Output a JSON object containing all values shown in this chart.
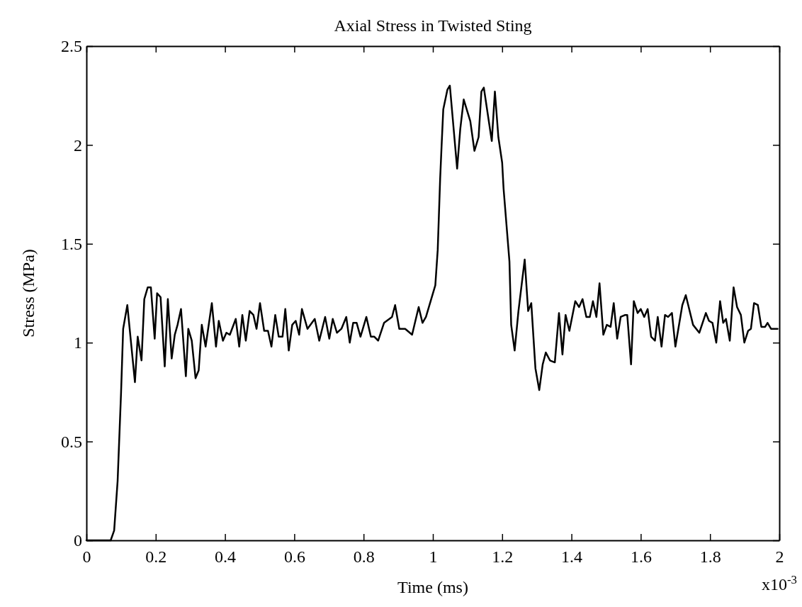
{
  "chart_data": {
    "type": "line",
    "title": "Axial Stress in Twisted Sting",
    "xlabel": "Time (ms)",
    "ylabel": "Stress (MPa)",
    "annotations": [
      "x10$^{-3}$"
    ],
    "xlim": [
      0,
      2
    ],
    "xticks": [
      0,
      0.2,
      0.4,
      0.6,
      0.8,
      1,
      1.2,
      1.4,
      1.6,
      1.8,
      2
    ],
    "ylim": [
      0,
      2.5
    ],
    "yticks": [
      0,
      0.5,
      1,
      1.5,
      2,
      2.5
    ],
    "grid": false,
    "marker": "none",
    "line_style": "solid",
    "series": [
      {
        "color": "#000000",
        "x": [
          0,
          0.07,
          0.08,
          0.09,
          0.1,
          0.106,
          0.118,
          0.14,
          0.148,
          0.159,
          0.167,
          0.177,
          0.186,
          0.197,
          0.204,
          0.214,
          0.226,
          0.235,
          0.246,
          0.255,
          0.263,
          0.273,
          0.287,
          0.294,
          0.304,
          0.315,
          0.324,
          0.333,
          0.344,
          0.362,
          0.374,
          0.382,
          0.394,
          0.404,
          0.414,
          0.431,
          0.441,
          0.45,
          0.46,
          0.471,
          0.482,
          0.491,
          0.501,
          0.513,
          0.524,
          0.534,
          0.545,
          0.555,
          0.566,
          0.574,
          0.584,
          0.594,
          0.604,
          0.614,
          0.622,
          0.638,
          0.659,
          0.672,
          0.689,
          0.701,
          0.711,
          0.723,
          0.736,
          0.75,
          0.76,
          0.77,
          0.78,
          0.791,
          0.808,
          0.821,
          0.831,
          0.842,
          0.859,
          0.882,
          0.891,
          0.903,
          0.92,
          0.94,
          0.959,
          0.97,
          0.98,
          1.007,
          1.014,
          1.021,
          1.025,
          1.03,
          1.042,
          1.049,
          1.07,
          1.079,
          1.089,
          1.108,
          1.12,
          1.132,
          1.14,
          1.147,
          1.17,
          1.179,
          1.189,
          1.2,
          1.204,
          1.221,
          1.226,
          1.236,
          1.247,
          1.265,
          1.275,
          1.284,
          1.296,
          1.307,
          1.317,
          1.326,
          1.338,
          1.352,
          1.364,
          1.374,
          1.383,
          1.394,
          1.411,
          1.422,
          1.432,
          1.443,
          1.453,
          1.462,
          1.472,
          1.481,
          1.492,
          1.502,
          1.513,
          1.522,
          1.532,
          1.542,
          1.555,
          1.561,
          1.572,
          1.58,
          1.591,
          1.6,
          1.61,
          1.62,
          1.63,
          1.641,
          1.649,
          1.66,
          1.67,
          1.679,
          1.69,
          1.7,
          1.72,
          1.73,
          1.751,
          1.769,
          1.788,
          1.797,
          1.807,
          1.818,
          1.829,
          1.838,
          1.846,
          1.857,
          1.868,
          1.878,
          1.889,
          1.899,
          1.91,
          1.918,
          1.927,
          1.938,
          1.948,
          1.959,
          1.966,
          1.976,
          1.995
        ],
        "values": [
          0,
          0,
          0.05,
          0.3,
          0.75,
          1.07,
          1.19,
          0.8,
          1.03,
          0.91,
          1.22,
          1.28,
          1.28,
          1.02,
          1.25,
          1.23,
          0.88,
          1.22,
          0.92,
          1.04,
          1.09,
          1.17,
          0.83,
          1.07,
          1.01,
          0.82,
          0.86,
          1.09,
          0.98,
          1.2,
          0.98,
          1.11,
          1.01,
          1.05,
          1.04,
          1.12,
          0.98,
          1.14,
          1.01,
          1.16,
          1.14,
          1.07,
          1.2,
          1.06,
          1.06,
          0.98,
          1.14,
          1.03,
          1.03,
          1.17,
          0.96,
          1.09,
          1.11,
          1.04,
          1.17,
          1.07,
          1.12,
          1.01,
          1.13,
          1.02,
          1.12,
          1.05,
          1.07,
          1.13,
          1,
          1.1,
          1.1,
          1.03,
          1.13,
          1.03,
          1.03,
          1.01,
          1.1,
          1.13,
          1.19,
          1.07,
          1.07,
          1.04,
          1.18,
          1.1,
          1.13,
          1.29,
          1.47,
          1.83,
          1.99,
          2.18,
          2.28,
          2.3,
          1.88,
          2.08,
          2.23,
          2.12,
          1.97,
          2.04,
          2.27,
          2.29,
          2.02,
          2.27,
          2.04,
          1.91,
          1.78,
          1.41,
          1.09,
          0.96,
          1.16,
          1.42,
          1.16,
          1.2,
          0.87,
          0.76,
          0.89,
          0.95,
          0.91,
          0.9,
          1.15,
          0.94,
          1.14,
          1.06,
          1.21,
          1.18,
          1.22,
          1.13,
          1.13,
          1.21,
          1.13,
          1.3,
          1.04,
          1.09,
          1.08,
          1.2,
          1.02,
          1.13,
          1.14,
          1.14,
          0.89,
          1.21,
          1.15,
          1.17,
          1.13,
          1.17,
          1.03,
          1.01,
          1.13,
          0.98,
          1.14,
          1.13,
          1.15,
          0.98,
          1.19,
          1.24,
          1.09,
          1.05,
          1.15,
          1.11,
          1.1,
          1,
          1.21,
          1.1,
          1.12,
          1.01,
          1.28,
          1.18,
          1.14,
          1,
          1.06,
          1.07,
          1.2,
          1.19,
          1.08,
          1.08,
          1.1,
          1.07,
          1.07
        ]
      }
    ]
  }
}
